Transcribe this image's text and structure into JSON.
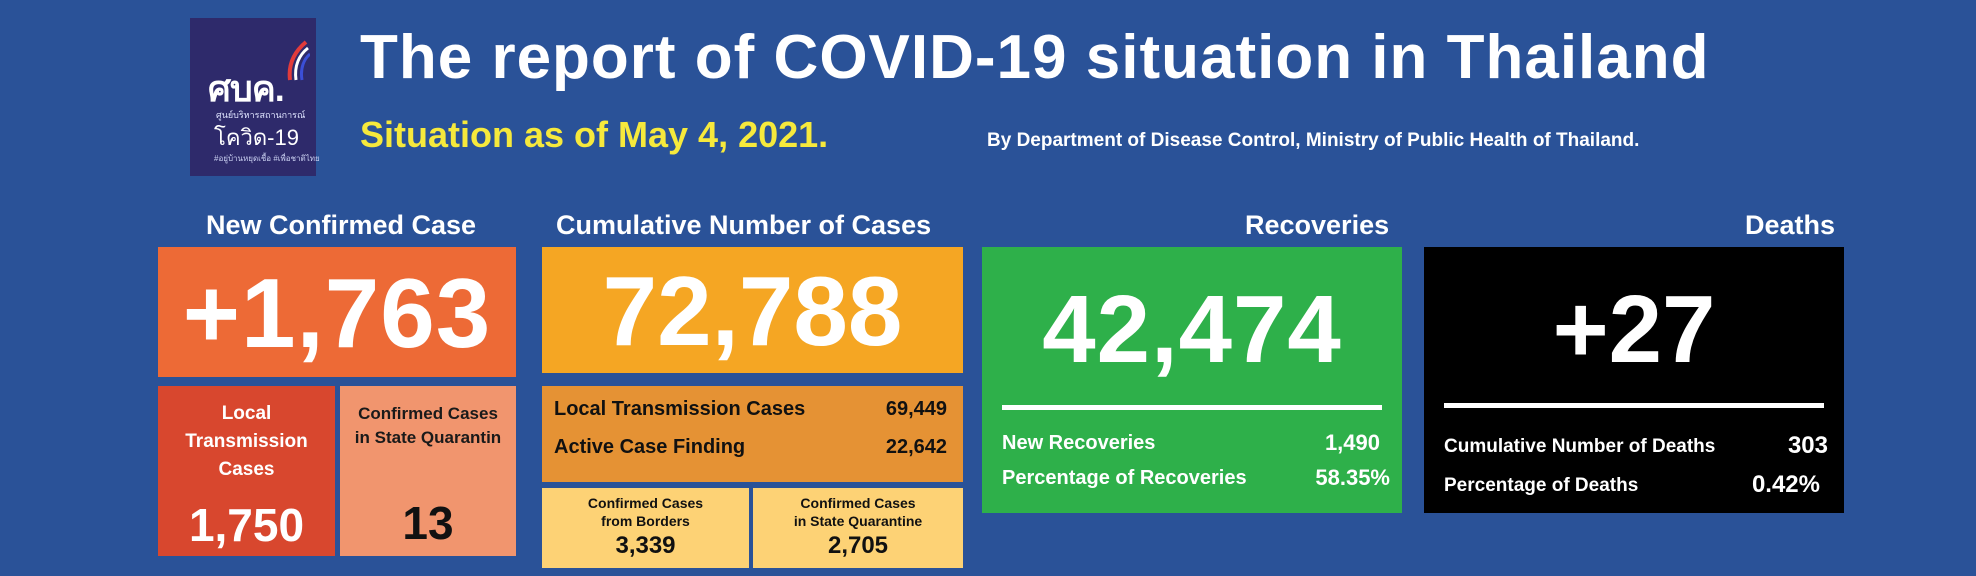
{
  "logo": {
    "main_text": "ศบค.",
    "line1": "ศูนย์บริหารสถานการณ์",
    "line2": "โควิด-19",
    "line3": "#อยู่บ้านหยุดเชื้อ #เพื่อชาติไทย"
  },
  "header": {
    "title": "The report of COVID-19 situation in Thailand",
    "subtitle": "Situation as of May 4, 2021.",
    "byline": "By Department of Disease Control, Ministry of Public Health of Thailand."
  },
  "new_confirmed": {
    "label": "New Confirmed Case",
    "value": "+1,763",
    "local_label": [
      "Local",
      "Transmission",
      "Cases"
    ],
    "local_value": "1,750",
    "sq_label": [
      "Confirmed Cases",
      "in State Quarantin"
    ],
    "sq_value": "13"
  },
  "cumulative": {
    "label": "Cumulative Number of Cases",
    "value": "72,788",
    "local_label": "Local Transmission Cases",
    "local_value": "69,449",
    "active_label": "Active Case Finding",
    "active_value": "22,642",
    "borders_label": [
      "Confirmed Cases",
      "from Borders"
    ],
    "borders_value": "3,339",
    "sq_label": [
      "Confirmed Cases",
      "in State Quarantine"
    ],
    "sq_value": "2,705"
  },
  "recoveries": {
    "label": "Recoveries",
    "value": "42,474",
    "new_label": "New Recoveries",
    "new_value": "1,490",
    "pct_label": "Percentage of Recoveries",
    "pct_value": "58.35%"
  },
  "deaths": {
    "label": "Deaths",
    "value": "+27",
    "cum_label": "Cumulative Number of Deaths",
    "cum_value": "303",
    "pct_label": "Percentage of Deaths",
    "pct_value": "0.42%"
  },
  "colors": {
    "background": "#2a5298",
    "new_confirmed": "#ed6a36",
    "cumulative": "#f5a623",
    "recoveries": "#2eb04a",
    "deaths": "#000000",
    "subtitle": "#f6e93c"
  }
}
